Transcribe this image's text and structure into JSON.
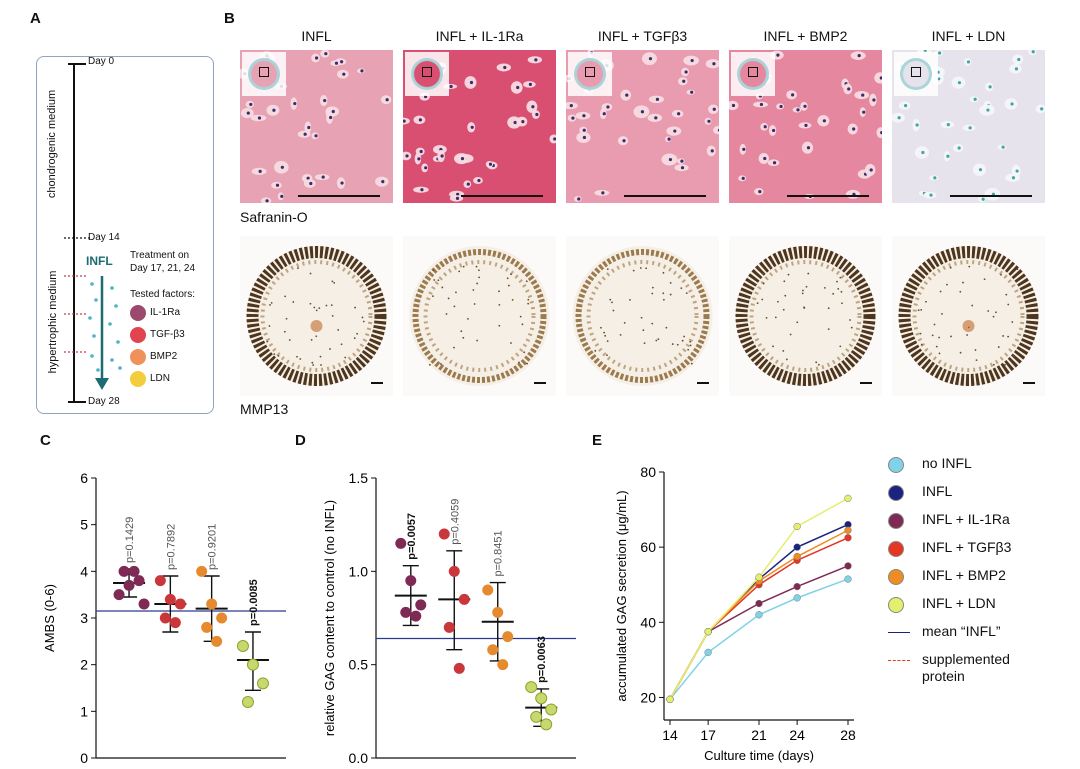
{
  "panels": {
    "A": "A",
    "B": "B",
    "C": "C",
    "D": "D",
    "E": "E"
  },
  "timeline": {
    "day0": "Day 0",
    "day14": "Day 14",
    "day28": "Day 28",
    "chondro": "chondrogenic medium",
    "hyper": "hypertrophic medium",
    "infl": "INFL",
    "treatment_line1": "Treatment on",
    "treatment_line2": "Day 17, 21, 24",
    "tested": "Tested factors:",
    "factors": [
      {
        "name": "IL-1Ra",
        "color": "#9b4a6e"
      },
      {
        "name": "TGF-β3",
        "color": "#e0454f"
      },
      {
        "name": "BMP2",
        "color": "#f0905a"
      },
      {
        "name": "LDN",
        "color": "#f3cd3b"
      }
    ]
  },
  "histology": {
    "columns": [
      "INFL",
      "INFL + IL-1Ra",
      "INFL + TGFβ3",
      "INFL + BMP2",
      "INFL + LDN"
    ],
    "row1_label": "Safranin-O",
    "row2_label": "MMP13",
    "saf_colors": [
      "#e7a2b3",
      "#d94f72",
      "#e99bb0",
      "#e5879f",
      "#e7e3ec"
    ]
  },
  "chart_data": [
    {
      "type": "scatter",
      "panel": "C",
      "ylabel": "AMBS (0-6)",
      "ylim": [
        0,
        6
      ],
      "yticks": [
        0,
        1,
        2,
        3,
        4,
        5,
        6
      ],
      "groups": [
        {
          "color": "#7e2a55",
          "points": [
            3.5,
            3.7,
            3.8,
            4.0,
            4.0,
            3.3
          ],
          "mean": 3.75,
          "sd": [
            3.45,
            4.05
          ],
          "pvalue": "p=0.1429",
          "bold": false
        },
        {
          "color": "#c9373a",
          "points": [
            3.8,
            3.4,
            3.3,
            3.0,
            2.9
          ],
          "mean": 3.3,
          "sd": [
            2.7,
            3.9
          ],
          "pvalue": "p=0.7892",
          "bold": false
        },
        {
          "color": "#e58a2f",
          "points": [
            4.0,
            3.3,
            3.0,
            2.8,
            2.5
          ],
          "mean": 3.2,
          "sd": [
            2.5,
            3.9
          ],
          "pvalue": "p=0.9201",
          "bold": false
        },
        {
          "color": "#c9d86d",
          "points": [
            2.4,
            2.0,
            1.6,
            1.2
          ],
          "mean": 2.1,
          "sd": [
            1.45,
            2.7
          ],
          "pvalue": "p=0.0085",
          "bold": true
        }
      ],
      "reference_line": 3.15
    },
    {
      "type": "scatter",
      "panel": "D",
      "ylabel": "relative GAG content to control (no INFL)",
      "ylim": [
        0,
        1.5
      ],
      "yticks": [
        0.0,
        0.5,
        1.0,
        1.5
      ],
      "ytick_labels": [
        "0.0",
        "0.5",
        "1.0",
        "1.5"
      ],
      "groups": [
        {
          "color": "#7e2a55",
          "points": [
            1.15,
            0.95,
            0.82,
            0.78,
            0.76
          ],
          "mean": 0.87,
          "sd": [
            0.71,
            1.03
          ],
          "pvalue": "p=0.0057",
          "bold": true
        },
        {
          "color": "#c9373a",
          "points": [
            1.2,
            1.0,
            0.85,
            0.7,
            0.48
          ],
          "mean": 0.85,
          "sd": [
            0.58,
            1.11
          ],
          "pvalue": "p=0.4059",
          "bold": false
        },
        {
          "color": "#e58a2f",
          "points": [
            0.9,
            0.78,
            0.65,
            0.58,
            0.5
          ],
          "mean": 0.73,
          "sd": [
            0.52,
            0.94
          ],
          "pvalue": "p=0.8451",
          "bold": false
        },
        {
          "color": "#c9d86d",
          "points": [
            0.38,
            0.32,
            0.26,
            0.22,
            0.18
          ],
          "mean": 0.27,
          "sd": [
            0.17,
            0.37
          ],
          "pvalue": "p=0.0063",
          "bold": true
        }
      ],
      "reference_line": 0.64
    },
    {
      "type": "line",
      "panel": "E",
      "xlabel": "Culture time (days)",
      "ylabel": "accumulated GAG secretion (μg/mL)",
      "x": [
        14,
        17,
        21,
        24,
        28
      ],
      "ylim": [
        14,
        80
      ],
      "yticks": [
        20,
        40,
        60,
        80
      ],
      "series": [
        {
          "name": "no INFL",
          "color": "#7fd3e8",
          "values": [
            19.5,
            32,
            42,
            46.5,
            51.5
          ]
        },
        {
          "name": "INFL",
          "color": "#1a237e",
          "values": [
            19.5,
            37.5,
            51.5,
            60,
            66
          ]
        },
        {
          "name": "INFL + IL-1Ra",
          "color": "#7e2a55",
          "values": [
            19.5,
            37.5,
            45,
            49.5,
            55
          ]
        },
        {
          "name": "INFL + TGFβ3",
          "color": "#e53523",
          "values": [
            19.5,
            37.5,
            50,
            56.5,
            62.5
          ]
        },
        {
          "name": "INFL + BMP2",
          "color": "#ef8c23",
          "values": [
            19.5,
            37.5,
            51,
            57.5,
            64.5
          ]
        },
        {
          "name": "INFL + LDN",
          "color": "#e4ef6d",
          "values": [
            19.5,
            37.5,
            52,
            65.5,
            73
          ]
        }
      ],
      "legend_extra": [
        {
          "name": "mean “INFL”",
          "color": "#1a237e",
          "style": "solid"
        },
        {
          "name": "supplemented",
          "name2": "protein",
          "color": "#e53523",
          "style": "dashed"
        }
      ],
      "legend": "right"
    }
  ]
}
